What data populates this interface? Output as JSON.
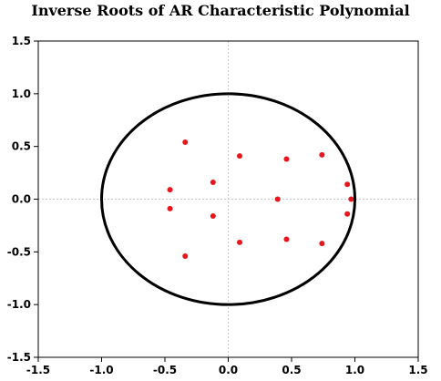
{
  "chart_data": {
    "type": "scatter",
    "title": "Inverse Roots of AR Characteristic Polynomial",
    "xlabel": "",
    "ylabel": "",
    "xlim": [
      -1.5,
      1.5
    ],
    "ylim": [
      -1.5,
      1.5
    ],
    "xticks": [
      "-1.5",
      "-1.0",
      "-0.5",
      "0.0",
      "0.5",
      "1.0",
      "1.5"
    ],
    "yticks": [
      "1.5",
      "1.0",
      "0.5",
      "0.0",
      "-0.5",
      "-1.0",
      "-1.5"
    ],
    "grid": "zero-lines",
    "unit_circle_radius": 1.0,
    "point_color": "#e8161b",
    "points": [
      {
        "x": -0.34,
        "y": 0.54
      },
      {
        "x": 0.09,
        "y": 0.41
      },
      {
        "x": 0.46,
        "y": 0.38
      },
      {
        "x": 0.74,
        "y": 0.42
      },
      {
        "x": -0.12,
        "y": 0.16
      },
      {
        "x": -0.46,
        "y": 0.09
      },
      {
        "x": 0.39,
        "y": 0.0
      },
      {
        "x": 0.94,
        "y": 0.14
      },
      {
        "x": 0.97,
        "y": 0.0
      },
      {
        "x": -0.46,
        "y": -0.09
      },
      {
        "x": -0.12,
        "y": -0.16
      },
      {
        "x": 0.94,
        "y": -0.14
      },
      {
        "x": 0.09,
        "y": -0.41
      },
      {
        "x": 0.46,
        "y": -0.38
      },
      {
        "x": 0.74,
        "y": -0.42
      },
      {
        "x": -0.34,
        "y": -0.54
      }
    ]
  }
}
